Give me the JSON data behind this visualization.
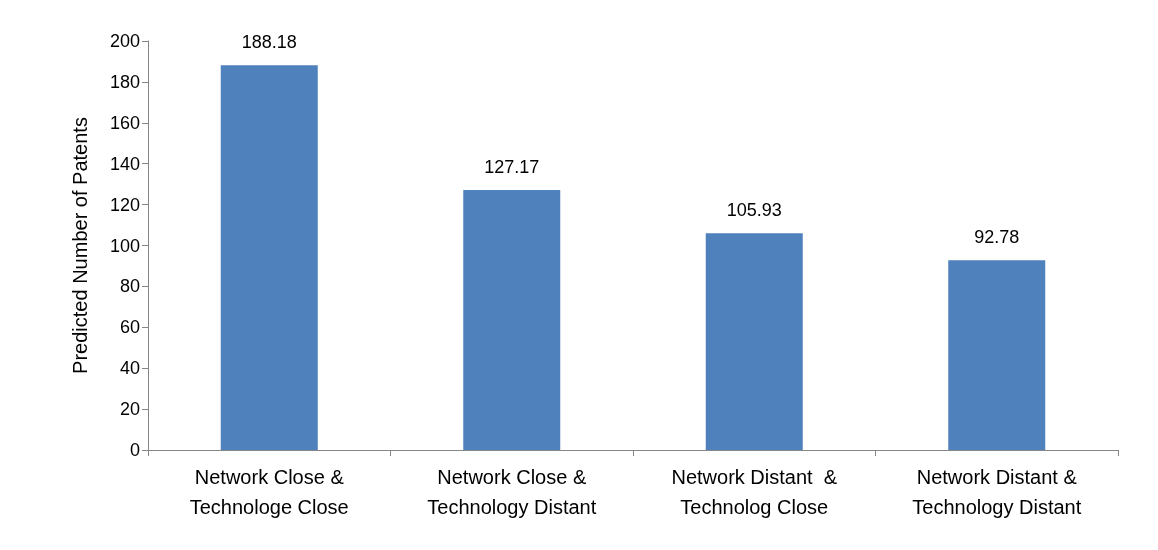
{
  "chart_data": {
    "type": "bar",
    "ylabel": "Predicted Number of Patents",
    "categories": [
      "Network Close &\nTechnologe Close",
      "Network Close &\nTechnology Distant",
      "Network Distant  &\nTechnolog Close",
      "Network Distant &\nTechnology Distant"
    ],
    "values": [
      188.18,
      127.17,
      105.93,
      92.78
    ],
    "color": "#4f81bd",
    "ylim": [
      0,
      200
    ],
    "yticks": [
      0,
      20,
      40,
      60,
      80,
      100,
      120,
      140,
      160,
      180,
      200
    ],
    "grid": false,
    "data_labels": true
  }
}
